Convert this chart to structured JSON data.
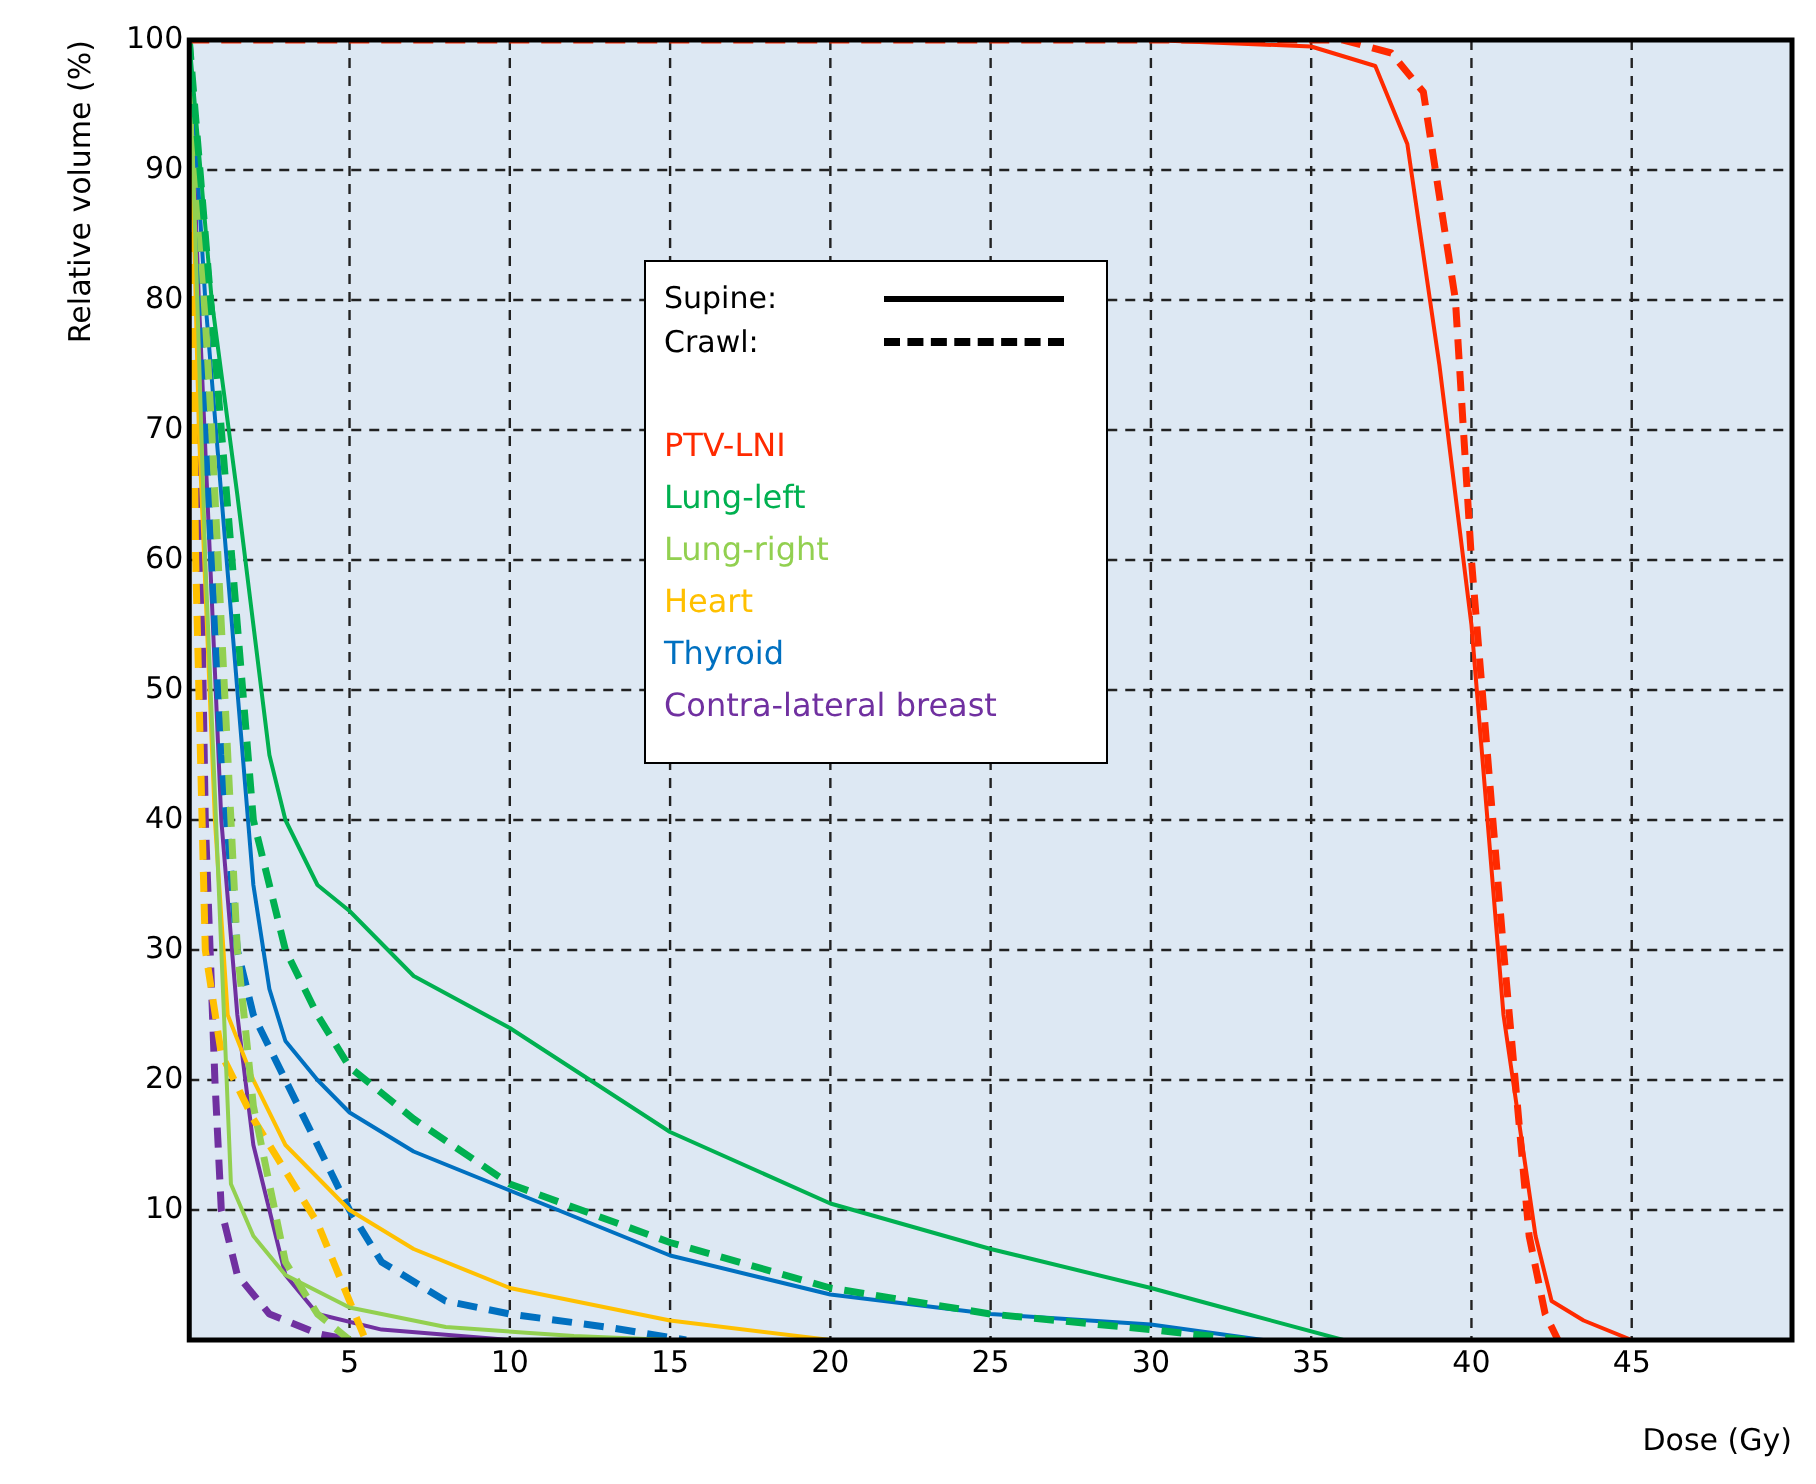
{
  "chart_data": {
    "type": "line",
    "xlabel": "Dose (Gy)",
    "ylabel": "Relative volume (%)",
    "xlim": [
      0,
      50
    ],
    "xticks": [
      5,
      10,
      15,
      20,
      25,
      30,
      35,
      40,
      45
    ],
    "ylim": [
      0,
      100
    ],
    "yticks": [
      10,
      20,
      30,
      40,
      50,
      60,
      70,
      80,
      90,
      100
    ],
    "grid": true,
    "legend": "top",
    "marker": "none",
    "annotations": [
      "Supine:",
      "Crawl:"
    ],
    "series": [
      {
        "name": "PTV-LNI",
        "color": "#ff2a00",
        "line_style": "solid",
        "x": [
          0,
          30,
          35,
          37,
          38,
          39,
          40,
          41,
          42,
          42.5,
          43.5,
          45
        ],
        "values": [
          100,
          100,
          99.5,
          98,
          92,
          75,
          55,
          25,
          8,
          3,
          1.5,
          0
        ]
      },
      {
        "color": "#ff2a00",
        "line_style": "dashed",
        "x": [
          0,
          36,
          37.5,
          38.5,
          39.5,
          40,
          41,
          41.8,
          42.3,
          42.7
        ],
        "values": [
          100,
          100,
          99,
          96,
          80,
          60,
          30,
          8,
          2,
          0
        ]
      },
      {
        "name": "Lung-left",
        "color": "#00b050",
        "line_style": "solid",
        "x": [
          0,
          0.7,
          1.5,
          2,
          2.5,
          3,
          4,
          5,
          7,
          10,
          15,
          20,
          25,
          30,
          33,
          36
        ],
        "values": [
          100,
          80,
          65,
          55,
          45,
          40,
          35,
          33,
          28,
          24,
          16,
          10.5,
          7,
          4,
          2,
          0
        ]
      },
      {
        "color": "#00b050",
        "line_style": "dashed",
        "x": [
          0,
          1,
          1.5,
          2,
          3,
          4,
          5,
          7,
          10,
          15,
          20,
          25,
          30,
          33
        ],
        "values": [
          100,
          70,
          55,
          40,
          30,
          25,
          21,
          17,
          12,
          7.5,
          4,
          2,
          0.8,
          0
        ]
      },
      {
        "name": "Lung-right",
        "color": "#92d050",
        "line_style": "solid",
        "x": [
          0,
          0.5,
          1,
          1.3,
          2,
          3,
          5,
          8,
          12,
          15
        ],
        "values": [
          100,
          60,
          30,
          12,
          8,
          5,
          2.5,
          1,
          0.3,
          0
        ]
      },
      {
        "color": "#92d050",
        "line_style": "dashed",
        "x": [
          0,
          0.7,
          1.2,
          1.5,
          2,
          2.5,
          3,
          4,
          5
        ],
        "values": [
          100,
          70,
          45,
          30,
          18,
          12,
          6,
          2,
          0
        ]
      },
      {
        "name": "Heart",
        "color": "#ffc000",
        "line_style": "solid",
        "x": [
          0,
          0.3,
          0.8,
          1.2,
          2,
          3,
          4,
          5,
          7,
          10,
          15,
          20
        ],
        "values": [
          100,
          70,
          40,
          25,
          20,
          15,
          12.5,
          10,
          7,
          4,
          1.5,
          0
        ]
      },
      {
        "color": "#ffc000",
        "line_style": "dashed",
        "x": [
          0,
          0.2,
          0.5,
          1,
          2,
          3,
          4,
          4.5,
          5,
          5.5
        ],
        "values": [
          100,
          60,
          30,
          22,
          17,
          13,
          9,
          6,
          3,
          0
        ]
      },
      {
        "name": "Thyroid",
        "color": "#0070c0",
        "line_style": "solid",
        "x": [
          0,
          0.5,
          1,
          1.5,
          2,
          2.5,
          3,
          4,
          5,
          7,
          10,
          15,
          20,
          25,
          30,
          33.5
        ],
        "values": [
          100,
          80,
          65,
          50,
          35,
          27,
          23,
          20,
          17.5,
          14.5,
          11.5,
          6.5,
          3.5,
          2,
          1.2,
          0
        ]
      },
      {
        "color": "#0070c0",
        "line_style": "dashed",
        "x": [
          0,
          0.5,
          1,
          1.5,
          2,
          3,
          4,
          5,
          6,
          8,
          10,
          13,
          15.5
        ],
        "values": [
          100,
          70,
          45,
          30,
          25,
          20,
          15,
          10,
          6,
          3,
          2,
          1,
          0
        ]
      },
      {
        "name": "Contra-lateral breast",
        "color": "#7030a0",
        "line_style": "solid",
        "x": [
          0,
          0.3,
          1,
          1.5,
          2,
          2.5,
          3,
          4,
          6,
          10
        ],
        "values": [
          100,
          80,
          40,
          25,
          15,
          10,
          5,
          2,
          0.8,
          0
        ]
      },
      {
        "color": "#7030a0",
        "line_style": "dashed",
        "x": [
          0,
          0.3,
          0.5,
          0.8,
          1,
          1.5,
          2.5,
          4,
          5
        ],
        "values": [
          100,
          70,
          40,
          20,
          10,
          5,
          2,
          0.5,
          0
        ]
      }
    ]
  }
}
